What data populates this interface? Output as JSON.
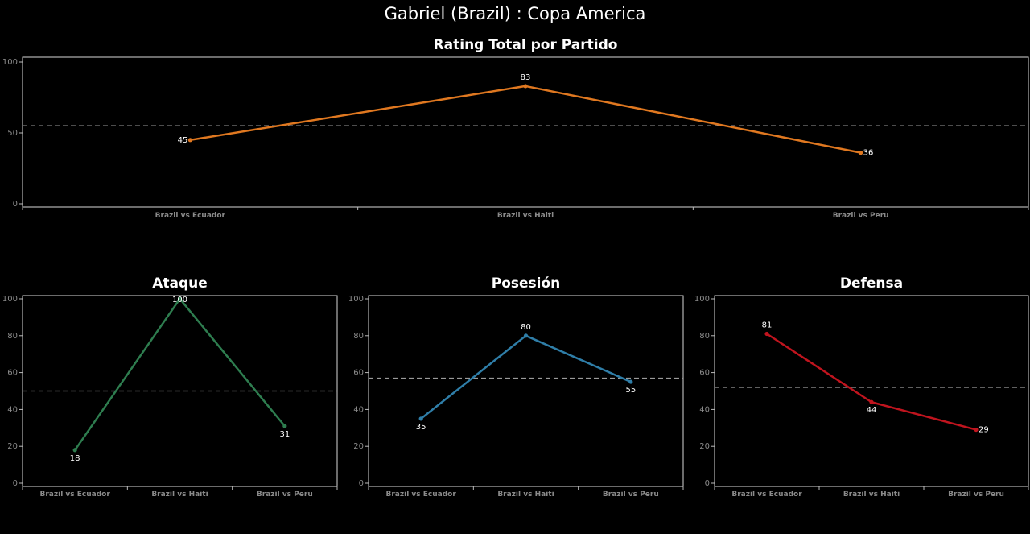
{
  "title": "Gabriel (Brazil) :  Copa  America",
  "chart_data": [
    {
      "type": "line",
      "title": "Rating Total por Partido",
      "categories": [
        "Brazil vs Ecuador",
        "Brazil vs Haiti",
        "Brazil vs Peru"
      ],
      "values": [
        45,
        83,
        36
      ],
      "yticks": [
        0,
        50,
        100
      ],
      "ylim": [
        0,
        100
      ],
      "average": 55,
      "color": "#e07820",
      "xlabel": "",
      "ylabel": ""
    },
    {
      "type": "line",
      "title": "Ataque",
      "categories": [
        "Brazil vs Ecuador",
        "Brazil vs Haiti",
        "Brazil vs Peru"
      ],
      "values": [
        18,
        100,
        31
      ],
      "yticks": [
        0,
        20,
        40,
        60,
        80,
        100
      ],
      "ylim": [
        0,
        100
      ],
      "average": 50,
      "color": "#2e7d4f",
      "xlabel": "",
      "ylabel": ""
    },
    {
      "type": "line",
      "title": "Posesión",
      "categories": [
        "Brazil vs Ecuador",
        "Brazil vs Haiti",
        "Brazil vs Peru"
      ],
      "values": [
        35,
        80,
        55
      ],
      "yticks": [
        0,
        20,
        40,
        60,
        80,
        100
      ],
      "ylim": [
        0,
        100
      ],
      "average": 57,
      "color": "#2f7ea8",
      "xlabel": "",
      "ylabel": ""
    },
    {
      "type": "line",
      "title": "Defensa",
      "categories": [
        "Brazil vs Ecuador",
        "Brazil vs Haiti",
        "Brazil vs Peru"
      ],
      "values": [
        81,
        44,
        29
      ],
      "yticks": [
        0,
        20,
        40,
        60,
        80,
        100
      ],
      "ylim": [
        0,
        100
      ],
      "average": 52,
      "color": "#c0141e",
      "xlabel": "",
      "ylabel": ""
    }
  ]
}
